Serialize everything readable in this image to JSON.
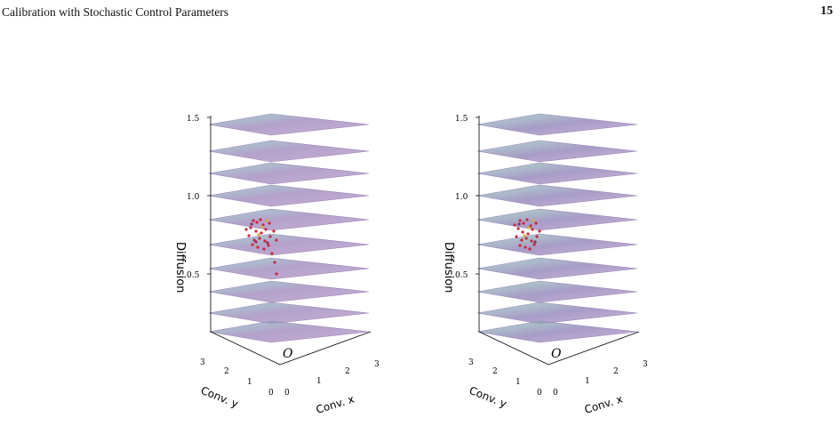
{
  "header": {
    "running_title": "Calibration with Stochastic Control Parameters",
    "page_number": "15"
  },
  "figure": {
    "panels": [
      {
        "id": "left",
        "z_axis_label": "Diffusion",
        "z_ticks": [
          "1.5",
          "1.0",
          "0.5"
        ],
        "x_axis_label": "Conv. x",
        "y_axis_label": "Conv. y",
        "x_ticks": [
          "0",
          "1",
          "2",
          "3"
        ],
        "y_ticks": [
          "0",
          "1",
          "2",
          "3"
        ],
        "origin_label": "O"
      },
      {
        "id": "right",
        "z_axis_label": "Diffusion",
        "z_ticks": [
          "1.5",
          "1.0",
          "0.5"
        ],
        "x_axis_label": "Conv. x",
        "y_axis_label": "Conv. y",
        "x_ticks": [
          "0",
          "1",
          "2",
          "3"
        ],
        "y_ticks": [
          "0",
          "1",
          "2",
          "3"
        ],
        "origin_label": "O"
      }
    ]
  }
}
